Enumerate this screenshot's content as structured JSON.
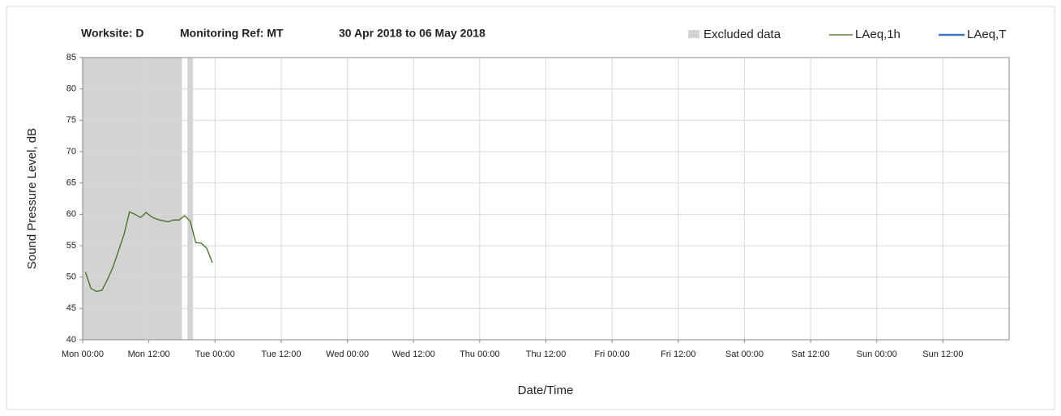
{
  "chart_data": {
    "type": "line",
    "title_worksite": "Worksite: D",
    "title_ref": "Monitoring Ref: MT",
    "title_period": "30 Apr 2018 to 06 May 2018",
    "y_label": "Sound Pressure Level, dB",
    "x_label": "Date/Time",
    "xlim": [
      0,
      168
    ],
    "xticks": [
      {
        "value": 0,
        "label": "Mon 00:00"
      },
      {
        "value": 12,
        "label": "Mon 12:00"
      },
      {
        "value": 24,
        "label": "Tue 00:00"
      },
      {
        "value": 36,
        "label": "Tue 12:00"
      },
      {
        "value": 48,
        "label": "Wed 00:00"
      },
      {
        "value": 60,
        "label": "Wed 12:00"
      },
      {
        "value": 72,
        "label": "Thu 00:00"
      },
      {
        "value": 84,
        "label": "Thu 12:00"
      },
      {
        "value": 96,
        "label": "Fri 00:00"
      },
      {
        "value": 108,
        "label": "Fri 12:00"
      },
      {
        "value": 120,
        "label": "Sat 00:00"
      },
      {
        "value": 132,
        "label": "Sat 12:00"
      },
      {
        "value": 144,
        "label": "Sun 00:00"
      },
      {
        "value": 156,
        "label": "Sun 12:00"
      }
    ],
    "ylim": [
      40,
      85
    ],
    "yticks": [
      40,
      45,
      50,
      55,
      60,
      65,
      70,
      75,
      80,
      85
    ],
    "grid": true,
    "excluded": {
      "name": "Excluded data",
      "color": "#d3d3d3",
      "ranges": [
        [
          0,
          18
        ],
        [
          19,
          20
        ]
      ]
    },
    "x": [
      0.5,
      1.5,
      2.5,
      3.5,
      4.5,
      5.5,
      6.5,
      7.5,
      8.5,
      9.5,
      10.5,
      11.5,
      12.5,
      13.5,
      14.5,
      15.5,
      16.5,
      17.5,
      18.5,
      19.5,
      20.5,
      21.5,
      22.5,
      23.5
    ],
    "series": [
      {
        "name": "LAeq,1h",
        "color": "#3f6e22",
        "values": [
          50.8,
          48.2,
          47.7,
          47.9,
          49.6,
          51.6,
          54.2,
          56.8,
          60.4,
          60.0,
          59.5,
          60.3,
          59.6,
          59.2,
          59.0,
          58.8,
          59.1,
          59.1,
          59.8,
          58.9,
          55.5,
          55.4,
          54.6,
          52.3
        ]
      },
      {
        "name": "LAeq,T",
        "color": "#4472c4",
        "values": [
          null,
          null,
          null,
          null,
          null,
          null,
          null,
          null,
          null,
          null,
          null,
          null,
          null,
          null,
          null,
          null,
          null,
          null,
          null,
          null,
          null,
          null,
          null,
          null
        ]
      }
    ]
  }
}
